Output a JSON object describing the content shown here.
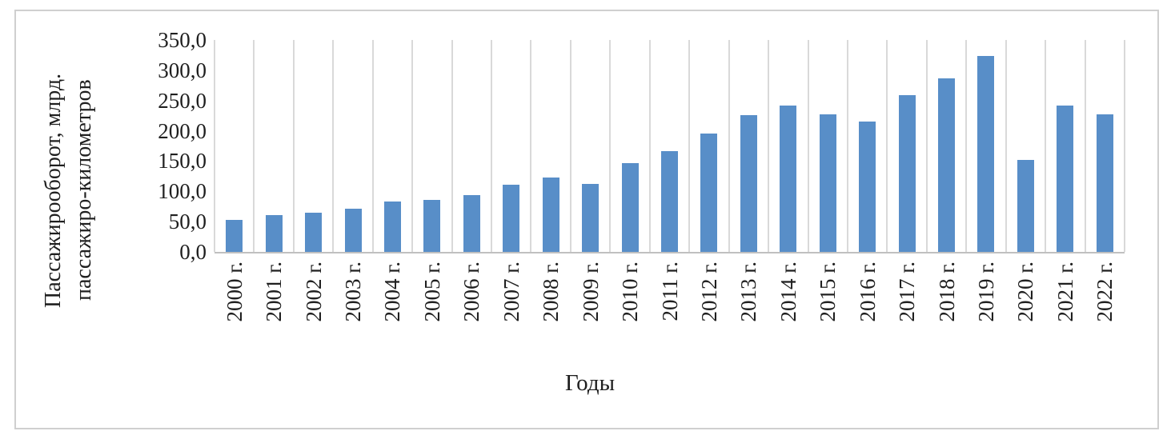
{
  "figure": {
    "background": "#ffffff",
    "border_color": "#cfcfcf"
  },
  "chart_data": {
    "type": "bar",
    "title": "",
    "xlabel": "Годы",
    "ylabel": "Пассажирооборот, млрд. пассажиро-километров",
    "ylabel_lines": [
      "Пассажирооборот, млрд.",
      "пассажиро-километров"
    ],
    "categories": [
      "2000 г.",
      "2001 г.",
      "2002 г.",
      "2003 г.",
      "2004 г.",
      "2005 г.",
      "2006 г.",
      "2007 г.",
      "2008 г.",
      "2009 г.",
      "2010 г.",
      "2011 г.",
      "2012 г.",
      "2013 г.",
      "2014 г.",
      "2015 г.",
      "2016 г.",
      "2017 г.",
      "2018 г.",
      "2019 г.",
      "2020 г.",
      "2021 г.",
      "2022 г."
    ],
    "values": [
      53.4,
      60.6,
      64.7,
      71.1,
      83.0,
      85.8,
      93.9,
      111.0,
      122.6,
      112.5,
      147.1,
      166.8,
      195.8,
      225.2,
      241.4,
      226.8,
      215.6,
      259.4,
      286.9,
      323.0,
      151.8,
      242.0,
      226.6
    ],
    "y_tick_labels": [
      "350,0",
      "300,0",
      "250,0",
      "200,0",
      "150,0",
      "100,0",
      "50,0",
      "0,0"
    ],
    "ylim": [
      0,
      350
    ],
    "grid": "vertical-only",
    "legend": "none",
    "bar_color": "#588EC8",
    "gridline_color": "#d9d9d9",
    "axis_color": "#c0c0c0",
    "text_color": "#1f1f1f"
  }
}
